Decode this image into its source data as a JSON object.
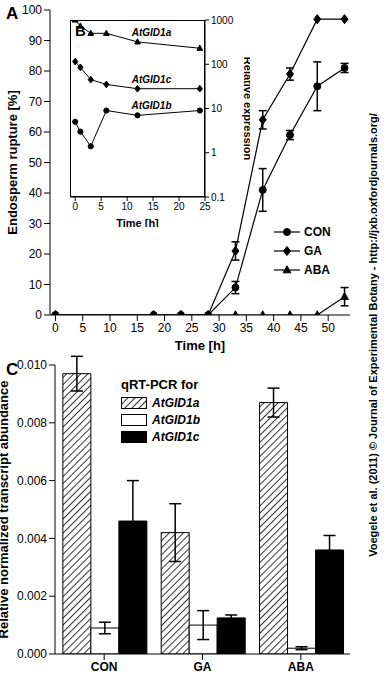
{
  "credit": "Voegele et al. (2011) © Journal of Experimental Botany - http://jxb.oxfordjournals.org/",
  "chart_data": [
    {
      "panel": "A",
      "type": "line",
      "x_label": "Time [h]",
      "y_label": "Endosperm rupture [%]",
      "xlim": [
        -1,
        54
      ],
      "xticks": [
        0,
        5,
        10,
        15,
        20,
        25,
        30,
        35,
        40,
        45,
        50
      ],
      "ylim": [
        0,
        100
      ],
      "yticks": [
        0,
        10,
        20,
        30,
        40,
        50,
        60,
        70,
        80,
        90,
        100
      ],
      "legend": "lower right",
      "x": [
        0,
        18,
        23,
        28,
        33,
        38,
        43,
        48,
        53
      ],
      "series": [
        {
          "name": "CON",
          "color": "#000000",
          "marker": "circle",
          "values": [
            0,
            0,
            0,
            0,
            9,
            41,
            59,
            75,
            81
          ],
          "errors": [
            0,
            0,
            0,
            0,
            2,
            7,
            1.5,
            8,
            1.5
          ]
        },
        {
          "name": "GA",
          "color": "#000000",
          "marker": "diamond",
          "values": [
            0,
            0,
            0,
            0,
            21,
            64,
            79,
            97,
            97
          ],
          "errors": [
            0,
            0,
            0,
            0,
            3,
            3,
            2,
            0,
            0
          ]
        },
        {
          "name": "ABA",
          "color": "#000000",
          "marker": "triangle",
          "values": [
            0,
            0,
            0,
            0,
            0,
            0,
            0,
            0,
            6
          ],
          "errors": [
            0,
            0,
            0,
            0,
            0,
            0,
            0,
            0,
            3
          ]
        }
      ]
    },
    {
      "panel": "B",
      "type": "line",
      "x_label": "Time [h]",
      "y_label": "Relative expression",
      "log": "y",
      "xlim": [
        -1,
        25
      ],
      "xticks": [
        0,
        5,
        10,
        15,
        20,
        25
      ],
      "ylim": [
        0.1,
        1000
      ],
      "yticks": [
        0.1,
        1,
        10,
        100,
        1000
      ],
      "x": [
        0,
        1,
        3,
        6,
        12,
        24
      ],
      "series": [
        {
          "name": "AtGID1a",
          "color": "#000000",
          "marker": "triangle",
          "values": [
            1000,
            730,
            500,
            500,
            320,
            230
          ]
        },
        {
          "name": "AtGID1c",
          "color": "#000000",
          "marker": "diamond",
          "values": [
            115,
            85,
            45,
            35,
            28,
            28
          ]
        },
        {
          "name": "AtGID1b",
          "color": "#000000",
          "marker": "circle",
          "values": [
            5,
            3,
            1.4,
            9,
            7,
            9
          ]
        }
      ]
    },
    {
      "panel": "C",
      "type": "bar",
      "legend_title": "qRT-PCR for",
      "y_label": "Relative normalized transcript abundance",
      "legend": "upper left",
      "categories": [
        "CON",
        "GA",
        "ABA"
      ],
      "ylim": [
        0,
        0.01
      ],
      "yticks": [
        {
          "value": 0,
          "label": "0.000"
        },
        {
          "value": 0.002,
          "label": "0.002"
        },
        {
          "value": 0.004,
          "label": "0.004"
        },
        {
          "value": 0.006,
          "label": "0.006"
        },
        {
          "value": 0.008,
          "label": "0.008"
        },
        {
          "value": 0.01,
          "label": "0.010"
        }
      ],
      "series": [
        {
          "name": "AtGID1a",
          "color": "#000000",
          "line_style": "hatched",
          "values": [
            0.0097,
            0.0042,
            0.0087
          ],
          "errors": [
            0.0006,
            0.001,
            0.0005
          ]
        },
        {
          "name": "AtGID1b",
          "color": "#ffffff",
          "values": [
            0.0009,
            0.001,
            0.0002
          ],
          "errors": [
            0.0002,
            0.0005,
            5e-05
          ]
        },
        {
          "name": "AtGID1c",
          "color": "#000000",
          "values": [
            0.0046,
            0.00125,
            0.0036
          ],
          "errors": [
            0.0014,
            0.0001,
            0.0005
          ]
        }
      ]
    }
  ]
}
